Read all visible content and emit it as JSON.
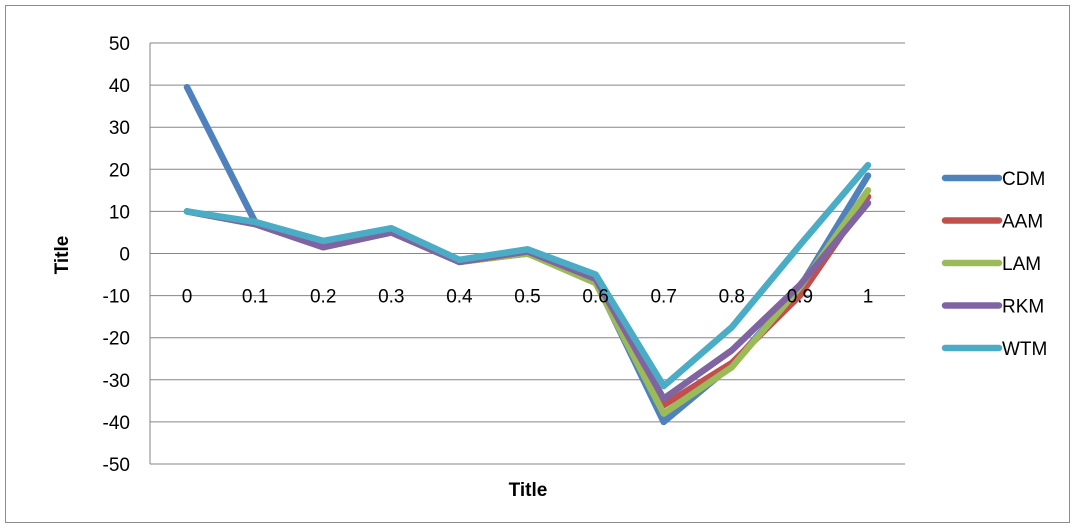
{
  "chart_data": {
    "type": "line",
    "title": "",
    "xlabel": "Title",
    "ylabel": "Title",
    "categories": [
      "0",
      "0.1",
      "0.2",
      "0.3",
      "0.4",
      "0.5",
      "0.6",
      "0.7",
      "0.8",
      "0.9",
      "1"
    ],
    "x": [
      0,
      0.1,
      0.2,
      0.3,
      0.4,
      0.5,
      0.6,
      0.7,
      0.8,
      0.9,
      1
    ],
    "ylim": [
      -50,
      50
    ],
    "yticks": [
      "50",
      "40",
      "30",
      "20",
      "10",
      "0",
      "-10",
      "-20",
      "-30",
      "-40",
      "-50"
    ],
    "ytick_values": [
      50,
      40,
      30,
      20,
      10,
      0,
      -10,
      -20,
      -30,
      -40,
      -50
    ],
    "grid": true,
    "legend_position": "right",
    "series": [
      {
        "name": "CDM",
        "color": "#4F81BD",
        "values": [
          39.5,
          7.5,
          2,
          5.5,
          -2,
          0.5,
          -6.5,
          -40,
          -26.5,
          -8,
          18.5
        ]
      },
      {
        "name": "AAM",
        "color": "#C0504D",
        "values": [
          10,
          7,
          1.5,
          5,
          -2,
          0,
          -6.5,
          -36,
          -26,
          -10,
          13.5
        ]
      },
      {
        "name": "LAM",
        "color": "#9BBB59",
        "values": [
          10,
          7,
          1.5,
          5,
          -2,
          0,
          -7,
          -38,
          -27,
          -8,
          15
        ]
      },
      {
        "name": "RKM",
        "color": "#8064A2",
        "values": [
          10,
          7,
          1.5,
          5,
          -2,
          0.5,
          -6,
          -34.5,
          -23,
          -7.5,
          12
        ]
      },
      {
        "name": "WTM",
        "color": "#4BACC6",
        "values": [
          10,
          7.5,
          3,
          6,
          -1.5,
          1,
          -5,
          -31.5,
          -17.5,
          2,
          21
        ]
      }
    ]
  }
}
